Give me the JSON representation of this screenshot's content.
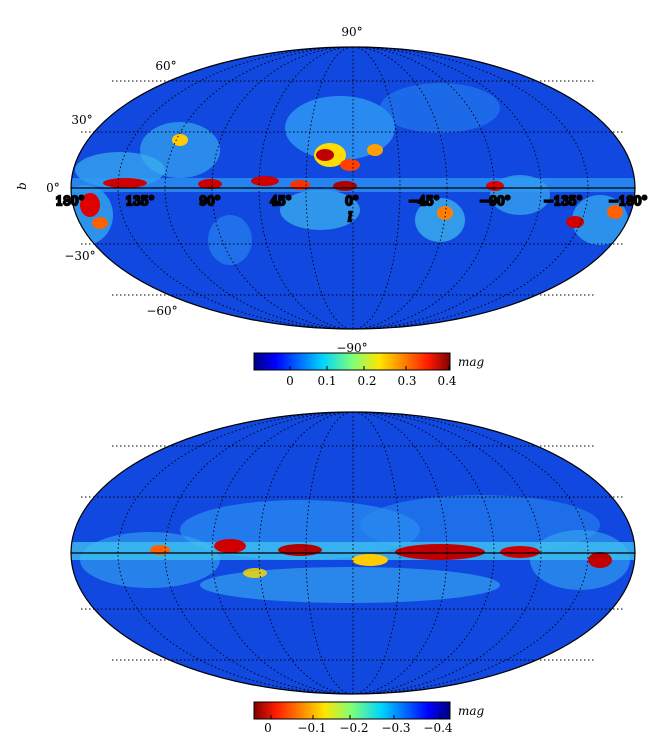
{
  "colormap": "jet",
  "colors": {
    "background": "#1148e0",
    "axis_line": "#000000",
    "grid": "#000000",
    "text": "#000000"
  },
  "chart_data": [
    {
      "type": "heatmap",
      "projection": "mollweide",
      "title": "",
      "xlabel": "l",
      "ylabel": "b",
      "x_tick_labels": [
        "180°",
        "135°",
        "90°",
        "45°",
        "0°",
        "−45°",
        "−90°",
        "−135°",
        "−180°"
      ],
      "y_tick_labels": [
        "90°",
        "60°",
        "30°",
        "0°",
        "−30°",
        "−60°",
        "−90°"
      ],
      "grid": true,
      "colorbar": {
        "label": "mag",
        "ticks": [
          "0",
          "0.1",
          "0.2",
          "0.3",
          "0.4"
        ],
        "range": [
          -0.05,
          0.4
        ],
        "placement": "bottom"
      }
    },
    {
      "type": "heatmap",
      "projection": "mollweide",
      "grid": true,
      "colorbar": {
        "label": "mag",
        "ticks": [
          "0",
          "−0.1",
          "−0.2",
          "−0.3",
          "−0.4"
        ],
        "range": [
          0.05,
          -0.4
        ],
        "placement": "bottom"
      }
    }
  ]
}
